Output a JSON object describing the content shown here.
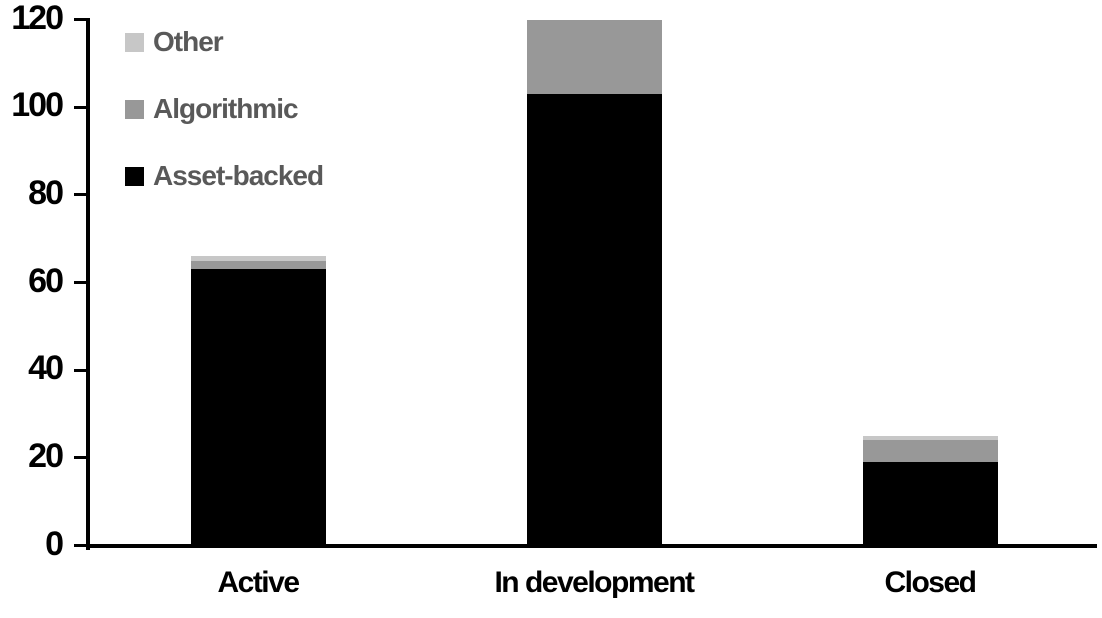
{
  "chart_data": {
    "type": "bar",
    "stacked": true,
    "title": "",
    "xlabel": "",
    "ylabel": "",
    "categories": [
      "Active",
      "In development",
      "Closed"
    ],
    "series": [
      {
        "name": "Asset-backed",
        "color": "#000000",
        "values": [
          63,
          103,
          19
        ]
      },
      {
        "name": "Algorithmic",
        "color": "#989898",
        "values": [
          2,
          17,
          5
        ]
      },
      {
        "name": "Other",
        "color": "#c7c7c7",
        "values": [
          1,
          0,
          1
        ]
      }
    ],
    "ylim": [
      0,
      120
    ],
    "yticks": [
      "0",
      "20",
      "40",
      "60",
      "80",
      "100",
      "120"
    ],
    "grid": false,
    "legend_position": "inside-top-left",
    "legend_order_top_to_bottom": [
      "Other",
      "Algorithmic",
      "Asset-backed"
    ]
  },
  "colors": {
    "axis": "#000000",
    "tick_label_text": "#000000",
    "category_label_text": "#000000",
    "legend_text": "#595959",
    "background": "#ffffff"
  }
}
